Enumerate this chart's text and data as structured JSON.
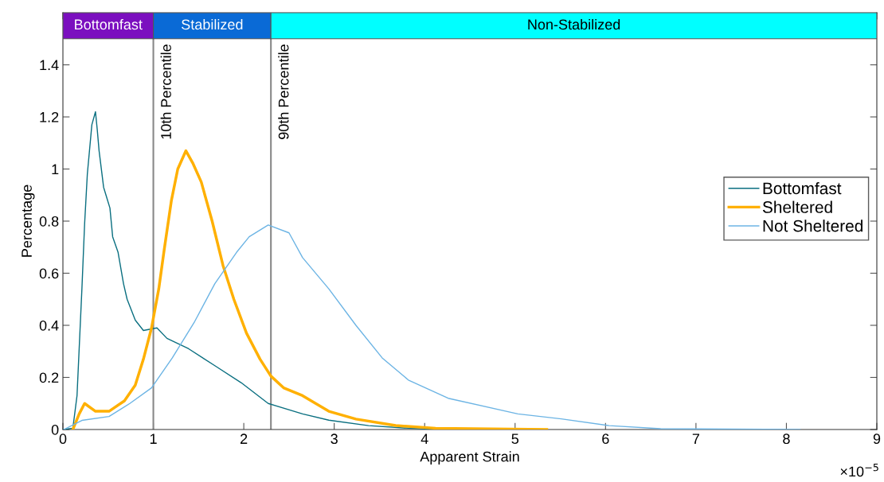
{
  "chart_data": {
    "type": "line",
    "xlabel": "Apparent Strain",
    "ylabel": "Percentage",
    "xlim": [
      0,
      9
    ],
    "xticks": [
      0,
      1,
      2,
      3,
      4,
      5,
      6,
      7,
      8,
      9
    ],
    "ylim": [
      0,
      1.6
    ],
    "yticks": [
      0,
      0.2,
      0.4,
      0.6,
      0.8,
      1,
      1.2,
      1.4
    ],
    "grid": false,
    "legend": "right",
    "marker": "none",
    "line_style": "solid",
    "annotations": [
      "×10$^{−5}$"
    ],
    "ref_lines": [
      {
        "axis": "x",
        "value": 1,
        "label": "10th Percentile",
        "color": "#888888"
      },
      {
        "axis": "x",
        "value": 2.3,
        "label": "90th Percentile",
        "color": "#888888"
      }
    ],
    "bands": [
      {
        "axis": "x",
        "from": 0,
        "to": 1,
        "label": "Bottomfast",
        "color": "#7b0fbf"
      },
      {
        "axis": "x",
        "from": 1,
        "to": 2.3,
        "label": "Stabilized",
        "color": "#0a6ad6"
      },
      {
        "axis": "x",
        "from": 2.3,
        "to": 9,
        "label": "Non-Stabilized",
        "color": "#00ffff"
      }
    ],
    "series": [
      {
        "name": "Bottomfast",
        "color": "#0a6f80",
        "x": [
          0.0,
          0.11,
          0.156,
          0.21,
          0.24,
          0.27,
          0.32,
          0.36,
          0.38,
          0.4,
          0.45,
          0.52,
          0.55,
          0.61,
          0.67,
          0.71,
          0.8,
          0.89,
          1.04,
          1.15,
          1.39,
          1.68,
          1.97,
          2.27,
          2.65,
          2.94,
          3.38,
          3.82,
          4.2
        ],
        "values": [
          0,
          0.005,
          0.13,
          0.54,
          0.79,
          0.98,
          1.17,
          1.22,
          1.15,
          1.07,
          0.93,
          0.85,
          0.74,
          0.68,
          0.56,
          0.5,
          0.42,
          0.38,
          0.39,
          0.35,
          0.31,
          0.245,
          0.18,
          0.1,
          0.06,
          0.036,
          0.015,
          0.005,
          0
        ]
      },
      {
        "name": "Sheltered",
        "color": "#ffb000",
        "x": [
          0.11,
          0.18,
          0.24,
          0.36,
          0.51,
          0.68,
          0.8,
          0.89,
          0.98,
          1.06,
          1.12,
          1.2,
          1.27,
          1.36,
          1.44,
          1.53,
          1.65,
          1.77,
          1.89,
          2.03,
          2.18,
          2.3,
          2.44,
          2.65,
          2.94,
          3.24,
          3.68,
          4.12,
          5.35
        ],
        "values": [
          0,
          0.06,
          0.1,
          0.07,
          0.07,
          0.11,
          0.17,
          0.27,
          0.39,
          0.54,
          0.69,
          0.88,
          1.0,
          1.07,
          1.02,
          0.95,
          0.8,
          0.63,
          0.5,
          0.37,
          0.27,
          0.205,
          0.16,
          0.13,
          0.07,
          0.04,
          0.015,
          0.005,
          0
        ]
      },
      {
        "name": "Not Sheltered",
        "color": "#6cb4e4",
        "x": [
          0.01,
          0.21,
          0.51,
          0.74,
          0.98,
          1.21,
          1.45,
          1.68,
          1.92,
          2.06,
          2.27,
          2.5,
          2.65,
          2.94,
          3.24,
          3.53,
          3.82,
          4.26,
          5.03,
          5.51,
          6.04,
          6.61,
          8.15
        ],
        "values": [
          0,
          0.035,
          0.05,
          0.1,
          0.16,
          0.275,
          0.41,
          0.56,
          0.68,
          0.74,
          0.785,
          0.755,
          0.66,
          0.54,
          0.4,
          0.275,
          0.19,
          0.12,
          0.06,
          0.041,
          0.015,
          0.003,
          0
        ]
      }
    ]
  }
}
